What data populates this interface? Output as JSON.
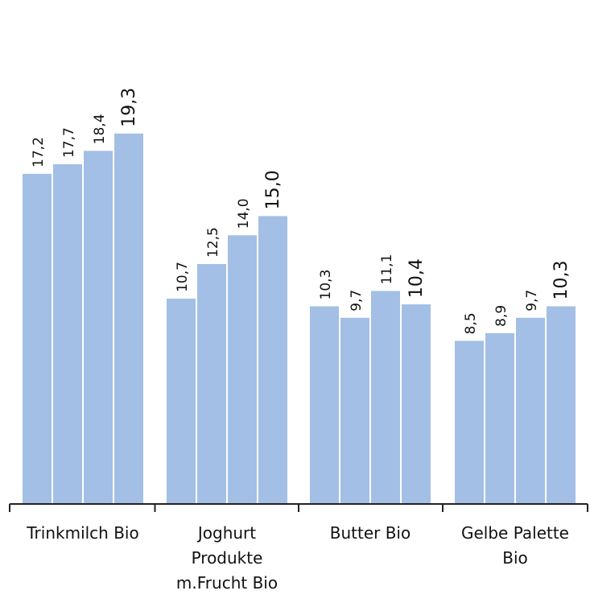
{
  "chart_data": {
    "type": "bar",
    "categories": [
      "Trinkmilch Bio",
      "Joghurt Produkte m.Frucht Bio",
      "Butter Bio",
      "Gelbe Palette Bio"
    ],
    "category_lines": [
      [
        "Trinkmilch Bio"
      ],
      [
        "Joghurt",
        "Produkte",
        "m.Frucht Bio"
      ],
      [
        "Butter Bio"
      ],
      [
        "Gelbe Palette",
        "Bio"
      ]
    ],
    "series": [
      {
        "values": [
          17.2,
          10.7,
          10.3,
          8.5
        ]
      },
      {
        "values": [
          17.7,
          12.5,
          9.7,
          8.9
        ]
      },
      {
        "values": [
          18.4,
          14.0,
          11.1,
          9.7
        ]
      },
      {
        "values": [
          19.3,
          15.0,
          10.4,
          10.3
        ]
      }
    ],
    "data_labels": [
      [
        "17,2",
        "17,7",
        "18,4",
        "19,3"
      ],
      [
        "10,7",
        "12,5",
        "14,0",
        "15,0"
      ],
      [
        "10,3",
        "9,7",
        "11,1",
        "10,4"
      ],
      [
        "8,5",
        "8,9",
        "9,7",
        "10,3"
      ]
    ],
    "title": "",
    "xlabel": "",
    "ylabel": "",
    "ylim": [
      0,
      25
    ],
    "grid": false,
    "bar_color": "#a3bfe6",
    "axis_color": "#222222",
    "label_color": "#111111"
  }
}
